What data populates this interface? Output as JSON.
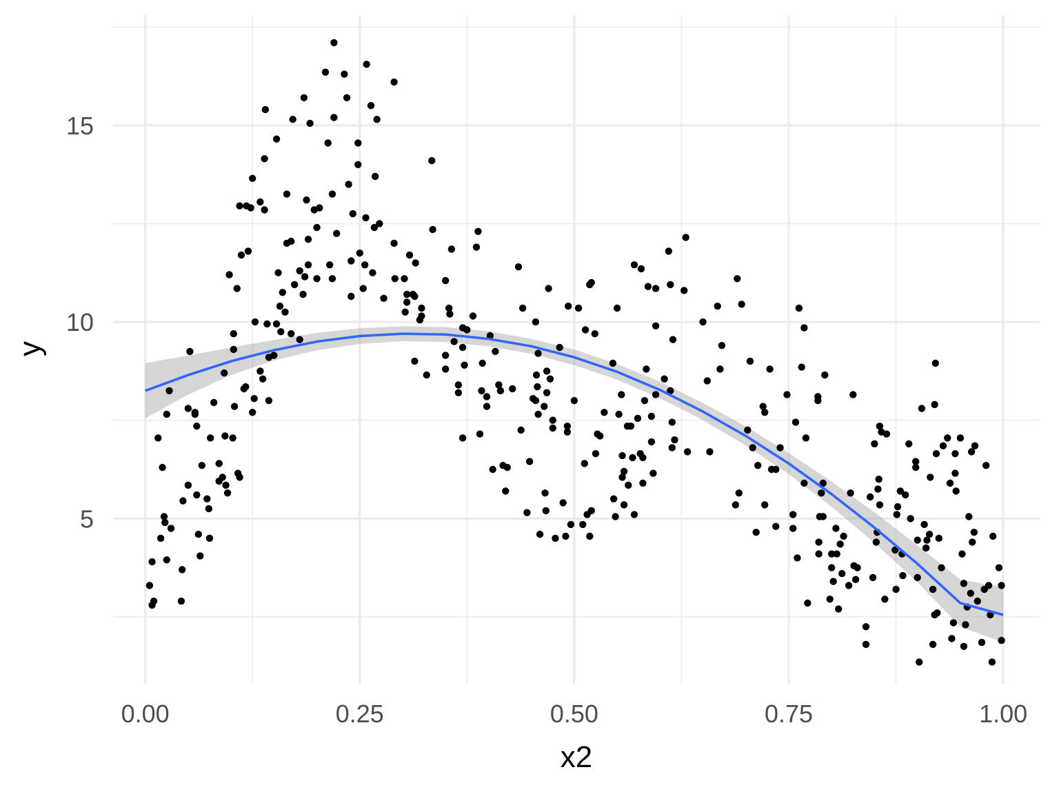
{
  "chart_data": {
    "type": "scatter",
    "xlabel": "x2",
    "ylabel": "y",
    "xlim": [
      -0.0375,
      1.0425
    ],
    "ylim": [
      0.8,
      17.8
    ],
    "x_ticks": [
      0.0,
      0.25,
      0.5,
      0.75,
      1.0
    ],
    "x_tick_labels": [
      "0.00",
      "0.25",
      "0.50",
      "0.75",
      "1.00"
    ],
    "y_ticks": [
      5,
      10,
      15
    ],
    "y_tick_labels": [
      "5",
      "10",
      "15"
    ],
    "grid": true,
    "legend": "none",
    "colors": {
      "points": "#000000",
      "smooth_line": "#3366ff",
      "ribbon": "#999999",
      "grid": "#ebebeb"
    },
    "smooth": {
      "method": "quadratic fit with confidence band",
      "x": [
        0.0,
        0.05,
        0.1,
        0.15,
        0.2,
        0.25,
        0.3,
        0.35,
        0.4,
        0.45,
        0.5,
        0.55,
        0.6,
        0.65,
        0.7,
        0.75,
        0.8,
        0.85,
        0.9,
        0.95,
        1.0
      ],
      "y": [
        8.25,
        8.65,
        9.0,
        9.28,
        9.5,
        9.64,
        9.7,
        9.68,
        9.57,
        9.38,
        9.1,
        8.73,
        8.27,
        7.72,
        7.1,
        6.4,
        5.62,
        4.77,
        3.85,
        2.85,
        2.55
      ],
      "lower": [
        7.55,
        8.15,
        8.65,
        9.02,
        9.28,
        9.44,
        9.51,
        9.49,
        9.38,
        9.19,
        8.9,
        8.53,
        8.06,
        7.5,
        6.86,
        6.13,
        5.3,
        4.38,
        3.38,
        2.25,
        1.85
      ],
      "upper": [
        8.95,
        9.15,
        9.35,
        9.54,
        9.72,
        9.84,
        9.89,
        9.87,
        9.76,
        9.57,
        9.3,
        8.93,
        8.48,
        7.94,
        7.34,
        6.67,
        5.94,
        5.16,
        4.32,
        3.45,
        3.25
      ]
    },
    "points": [
      [
        0.005,
        3.3
      ],
      [
        0.008,
        2.8
      ],
      [
        0.008,
        3.9
      ],
      [
        0.01,
        2.9
      ],
      [
        0.015,
        7.05
      ],
      [
        0.018,
        4.5
      ],
      [
        0.02,
        6.3
      ],
      [
        0.022,
        5.05
      ],
      [
        0.023,
        4.9
      ],
      [
        0.025,
        3.95
      ],
      [
        0.025,
        7.65
      ],
      [
        0.028,
        8.25
      ],
      [
        0.03,
        4.75
      ],
      [
        0.042,
        2.9
      ],
      [
        0.043,
        3.7
      ],
      [
        0.044,
        5.45
      ],
      [
        0.05,
        7.8
      ],
      [
        0.05,
        5.85
      ],
      [
        0.052,
        9.25
      ],
      [
        0.058,
        7.7
      ],
      [
        0.058,
        7.65
      ],
      [
        0.06,
        5.6
      ],
      [
        0.06,
        7.35
      ],
      [
        0.062,
        4.6
      ],
      [
        0.064,
        4.05
      ],
      [
        0.066,
        6.35
      ],
      [
        0.072,
        5.5
      ],
      [
        0.074,
        5.25
      ],
      [
        0.075,
        4.5
      ],
      [
        0.076,
        7.05
      ],
      [
        0.08,
        7.95
      ],
      [
        0.086,
        6.4
      ],
      [
        0.086,
        5.95
      ],
      [
        0.09,
        6.05
      ],
      [
        0.092,
        8.7
      ],
      [
        0.093,
        7.1
      ],
      [
        0.094,
        5.85
      ],
      [
        0.096,
        5.65
      ],
      [
        0.098,
        11.2
      ],
      [
        0.102,
        7.05
      ],
      [
        0.103,
        9.7
      ],
      [
        0.103,
        9.3
      ],
      [
        0.104,
        7.85
      ],
      [
        0.107,
        10.85
      ],
      [
        0.108,
        6.15
      ],
      [
        0.11,
        6.05
      ],
      [
        0.11,
        12.95
      ],
      [
        0.112,
        11.7
      ],
      [
        0.115,
        8.3
      ],
      [
        0.117,
        8.35
      ],
      [
        0.118,
        12.95
      ],
      [
        0.12,
        11.8
      ],
      [
        0.123,
        12.9
      ],
      [
        0.125,
        13.65
      ],
      [
        0.125,
        7.7
      ],
      [
        0.127,
        8.05
      ],
      [
        0.128,
        10.0
      ],
      [
        0.134,
        13.05
      ],
      [
        0.134,
        8.75
      ],
      [
        0.137,
        8.55
      ],
      [
        0.139,
        12.85
      ],
      [
        0.139,
        14.15
      ],
      [
        0.14,
        15.4
      ],
      [
        0.142,
        9.95
      ],
      [
        0.144,
        9.1
      ],
      [
        0.144,
        8.0
      ],
      [
        0.15,
        9.15
      ],
      [
        0.153,
        14.65
      ],
      [
        0.153,
        9.95
      ],
      [
        0.155,
        11.25
      ],
      [
        0.157,
        10.4
      ],
      [
        0.158,
        9.75
      ],
      [
        0.16,
        10.75
      ],
      [
        0.163,
        10.25
      ],
      [
        0.165,
        12.0
      ],
      [
        0.165,
        13.25
      ],
      [
        0.17,
        12.05
      ],
      [
        0.17,
        9.7
      ],
      [
        0.172,
        15.15
      ],
      [
        0.174,
        10.95
      ],
      [
        0.18,
        9.55
      ],
      [
        0.18,
        11.3
      ],
      [
        0.184,
        10.7
      ],
      [
        0.185,
        15.7
      ],
      [
        0.186,
        11.15
      ],
      [
        0.188,
        13.1
      ],
      [
        0.19,
        12.1
      ],
      [
        0.19,
        11.45
      ],
      [
        0.192,
        15.05
      ],
      [
        0.197,
        12.85
      ],
      [
        0.2,
        11.1
      ],
      [
        0.2,
        12.4
      ],
      [
        0.203,
        12.9
      ],
      [
        0.21,
        16.35
      ],
      [
        0.213,
        14.55
      ],
      [
        0.215,
        11.45
      ],
      [
        0.218,
        11.1
      ],
      [
        0.218,
        13.25
      ],
      [
        0.22,
        15.2
      ],
      [
        0.22,
        17.1
      ],
      [
        0.223,
        12.25
      ],
      [
        0.232,
        16.3
      ],
      [
        0.235,
        15.7
      ],
      [
        0.237,
        13.5
      ],
      [
        0.24,
        10.65
      ],
      [
        0.24,
        11.55
      ],
      [
        0.242,
        12.75
      ],
      [
        0.248,
        14.55
      ],
      [
        0.248,
        14.0
      ],
      [
        0.25,
        11.75
      ],
      [
        0.254,
        10.85
      ],
      [
        0.256,
        11.45
      ],
      [
        0.258,
        16.55
      ],
      [
        0.257,
        12.65
      ],
      [
        0.263,
        15.5
      ],
      [
        0.265,
        11.25
      ],
      [
        0.267,
        12.4
      ],
      [
        0.268,
        13.7
      ],
      [
        0.27,
        15.15
      ],
      [
        0.273,
        12.5
      ],
      [
        0.278,
        10.6
      ],
      [
        0.29,
        12.0
      ],
      [
        0.29,
        16.1
      ],
      [
        0.291,
        11.1
      ],
      [
        0.302,
        11.1
      ],
      [
        0.303,
        10.25
      ],
      [
        0.305,
        10.7
      ],
      [
        0.305,
        10.5
      ],
      [
        0.308,
        11.7
      ],
      [
        0.312,
        10.7
      ],
      [
        0.314,
        9.0
      ],
      [
        0.314,
        10.65
      ],
      [
        0.315,
        11.5
      ],
      [
        0.32,
        10.05
      ],
      [
        0.322,
        10.35
      ],
      [
        0.322,
        10.15
      ],
      [
        0.328,
        8.65
      ],
      [
        0.334,
        14.1
      ],
      [
        0.335,
        12.35
      ],
      [
        0.35,
        11.05
      ],
      [
        0.35,
        9.15
      ],
      [
        0.35,
        8.8
      ],
      [
        0.354,
        10.35
      ],
      [
        0.355,
        10.2
      ],
      [
        0.357,
        11.85
      ],
      [
        0.36,
        9.5
      ],
      [
        0.365,
        8.2
      ],
      [
        0.365,
        8.4
      ],
      [
        0.37,
        9.85
      ],
      [
        0.37,
        9.35
      ],
      [
        0.37,
        7.05
      ],
      [
        0.372,
        8.9
      ],
      [
        0.375,
        9.8
      ],
      [
        0.382,
        10.15
      ],
      [
        0.386,
        11.9
      ],
      [
        0.388,
        12.3
      ],
      [
        0.39,
        7.15
      ],
      [
        0.392,
        8.25
      ],
      [
        0.393,
        8.95
      ],
      [
        0.398,
        7.85
      ],
      [
        0.398,
        8.1
      ],
      [
        0.402,
        9.65
      ],
      [
        0.405,
        6.25
      ],
      [
        0.408,
        9.25
      ],
      [
        0.412,
        8.4
      ],
      [
        0.414,
        8.25
      ],
      [
        0.417,
        6.35
      ],
      [
        0.42,
        5.7
      ],
      [
        0.422,
        6.3
      ],
      [
        0.428,
        8.3
      ],
      [
        0.435,
        11.4
      ],
      [
        0.438,
        7.25
      ],
      [
        0.44,
        10.35
      ],
      [
        0.445,
        5.15
      ],
      [
        0.448,
        6.45
      ],
      [
        0.452,
        8.05
      ],
      [
        0.455,
        10.0
      ],
      [
        0.455,
        8.0
      ],
      [
        0.456,
        8.65
      ],
      [
        0.457,
        8.35
      ],
      [
        0.458,
        9.2
      ],
      [
        0.458,
        7.65
      ],
      [
        0.46,
        4.6
      ],
      [
        0.465,
        7.85
      ],
      [
        0.466,
        5.65
      ],
      [
        0.467,
        5.2
      ],
      [
        0.468,
        8.2
      ],
      [
        0.468,
        8.75
      ],
      [
        0.472,
        8.55
      ],
      [
        0.47,
        10.85
      ],
      [
        0.475,
        7.5
      ],
      [
        0.475,
        7.3
      ],
      [
        0.478,
        4.5
      ],
      [
        0.483,
        9.35
      ],
      [
        0.487,
        5.4
      ],
      [
        0.49,
        4.55
      ],
      [
        0.492,
        7.35
      ],
      [
        0.492,
        7.2
      ],
      [
        0.493,
        10.4
      ],
      [
        0.496,
        4.85
      ],
      [
        0.5,
        8.0
      ],
      [
        0.505,
        10.35
      ],
      [
        0.51,
        4.85
      ],
      [
        0.512,
        6.4
      ],
      [
        0.513,
        9.8
      ],
      [
        0.515,
        5.1
      ],
      [
        0.518,
        4.55
      ],
      [
        0.518,
        10.95
      ],
      [
        0.52,
        11.0
      ],
      [
        0.52,
        5.2
      ],
      [
        0.524,
        9.7
      ],
      [
        0.525,
        6.65
      ],
      [
        0.527,
        7.15
      ],
      [
        0.53,
        7.1
      ],
      [
        0.535,
        7.7
      ],
      [
        0.545,
        8.95
      ],
      [
        0.546,
        5.5
      ],
      [
        0.548,
        5.05
      ],
      [
        0.55,
        10.35
      ],
      [
        0.552,
        7.65
      ],
      [
        0.555,
        8.15
      ],
      [
        0.556,
        6.6
      ],
      [
        0.556,
        6.05
      ],
      [
        0.558,
        5.35
      ],
      [
        0.558,
        6.2
      ],
      [
        0.562,
        7.35
      ],
      [
        0.563,
        5.85
      ],
      [
        0.566,
        7.35
      ],
      [
        0.568,
        6.55
      ],
      [
        0.57,
        5.1
      ],
      [
        0.57,
        11.45
      ],
      [
        0.574,
        7.55
      ],
      [
        0.577,
        6.65
      ],
      [
        0.578,
        11.35
      ],
      [
        0.58,
        6.55
      ],
      [
        0.58,
        5.9
      ],
      [
        0.582,
        8.0
      ],
      [
        0.584,
        8.8
      ],
      [
        0.586,
        10.9
      ],
      [
        0.59,
        7.6
      ],
      [
        0.59,
        6.95
      ],
      [
        0.592,
        6.15
      ],
      [
        0.595,
        10.85
      ],
      [
        0.595,
        9.9
      ],
      [
        0.595,
        8.15
      ],
      [
        0.605,
        8.55
      ],
      [
        0.61,
        11.8
      ],
      [
        0.612,
        10.95
      ],
      [
        0.612,
        8.25
      ],
      [
        0.614,
        7.45
      ],
      [
        0.614,
        6.8
      ],
      [
        0.615,
        9.55
      ],
      [
        0.617,
        7.0
      ],
      [
        0.628,
        10.8
      ],
      [
        0.63,
        12.15
      ],
      [
        0.632,
        6.7
      ],
      [
        0.65,
        10.0
      ],
      [
        0.655,
        8.5
      ],
      [
        0.658,
        6.7
      ],
      [
        0.667,
        10.4
      ],
      [
        0.67,
        8.8
      ],
      [
        0.672,
        9.4
      ],
      [
        0.688,
        5.35
      ],
      [
        0.69,
        11.1
      ],
      [
        0.692,
        5.65
      ],
      [
        0.695,
        10.45
      ],
      [
        0.702,
        7.25
      ],
      [
        0.705,
        9.0
      ],
      [
        0.708,
        6.8
      ],
      [
        0.712,
        4.65
      ],
      [
        0.714,
        6.35
      ],
      [
        0.72,
        7.85
      ],
      [
        0.722,
        7.7
      ],
      [
        0.722,
        5.35
      ],
      [
        0.728,
        8.8
      ],
      [
        0.73,
        6.25
      ],
      [
        0.735,
        4.8
      ],
      [
        0.735,
        6.25
      ],
      [
        0.74,
        6.8
      ],
      [
        0.748,
        8.15
      ],
      [
        0.755,
        5.1
      ],
      [
        0.755,
        4.75
      ],
      [
        0.758,
        7.45
      ],
      [
        0.76,
        4.0
      ],
      [
        0.762,
        10.35
      ],
      [
        0.765,
        8.85
      ],
      [
        0.768,
        5.9
      ],
      [
        0.768,
        9.85
      ],
      [
        0.77,
        7.05
      ],
      [
        0.772,
        2.85
      ],
      [
        0.784,
        8.1
      ],
      [
        0.784,
        8.0
      ],
      [
        0.785,
        4.4
      ],
      [
        0.785,
        4.1
      ],
      [
        0.786,
        5.05
      ],
      [
        0.788,
        5.65
      ],
      [
        0.79,
        5.9
      ],
      [
        0.79,
        5.05
      ],
      [
        0.792,
        8.65
      ],
      [
        0.798,
        2.95
      ],
      [
        0.8,
        4.1
      ],
      [
        0.8,
        3.75
      ],
      [
        0.802,
        3.4
      ],
      [
        0.805,
        4.75
      ],
      [
        0.806,
        4.1
      ],
      [
        0.808,
        2.7
      ],
      [
        0.81,
        4.35
      ],
      [
        0.812,
        3.6
      ],
      [
        0.814,
        4.55
      ],
      [
        0.82,
        3.3
      ],
      [
        0.822,
        5.65
      ],
      [
        0.825,
        8.15
      ],
      [
        0.826,
        3.8
      ],
      [
        0.828,
        3.45
      ],
      [
        0.83,
        3.75
      ],
      [
        0.84,
        2.25
      ],
      [
        0.84,
        1.8
      ],
      [
        0.845,
        5.55
      ],
      [
        0.848,
        3.5
      ],
      [
        0.85,
        6.9
      ],
      [
        0.852,
        4.4
      ],
      [
        0.853,
        4.65
      ],
      [
        0.854,
        5.75
      ],
      [
        0.855,
        6.0
      ],
      [
        0.856,
        5.35
      ],
      [
        0.856,
        7.35
      ],
      [
        0.858,
        7.2
      ],
      [
        0.862,
        2.95
      ],
      [
        0.864,
        7.15
      ],
      [
        0.874,
        4.2
      ],
      [
        0.875,
        3.2
      ],
      [
        0.876,
        5.1
      ],
      [
        0.877,
        5.3
      ],
      [
        0.88,
        5.7
      ],
      [
        0.882,
        4.1
      ],
      [
        0.883,
        3.55
      ],
      [
        0.886,
        5.6
      ],
      [
        0.89,
        6.9
      ],
      [
        0.892,
        5.0
      ],
      [
        0.898,
        6.45
      ],
      [
        0.898,
        6.3
      ],
      [
        0.9,
        4.45
      ],
      [
        0.9,
        3.5
      ],
      [
        0.902,
        1.35
      ],
      [
        0.905,
        7.8
      ],
      [
        0.908,
        4.85
      ],
      [
        0.91,
        4.25
      ],
      [
        0.911,
        4.45
      ],
      [
        0.914,
        4.6
      ],
      [
        0.915,
        6.05
      ],
      [
        0.918,
        3.2
      ],
      [
        0.918,
        1.8
      ],
      [
        0.92,
        2.55
      ],
      [
        0.92,
        7.9
      ],
      [
        0.921,
        8.95
      ],
      [
        0.922,
        6.65
      ],
      [
        0.923,
        2.6
      ],
      [
        0.925,
        4.5
      ],
      [
        0.928,
        3.75
      ],
      [
        0.93,
        6.85
      ],
      [
        0.935,
        7.05
      ],
      [
        0.938,
        5.9
      ],
      [
        0.94,
        1.95
      ],
      [
        0.942,
        2.35
      ],
      [
        0.944,
        6.15
      ],
      [
        0.944,
        6.65
      ],
      [
        0.945,
        5.7
      ],
      [
        0.95,
        7.05
      ],
      [
        0.952,
        4.1
      ],
      [
        0.954,
        3.35
      ],
      [
        0.954,
        1.75
      ],
      [
        0.956,
        2.3
      ],
      [
        0.958,
        2.75
      ],
      [
        0.96,
        5.05
      ],
      [
        0.962,
        3.1
      ],
      [
        0.963,
        6.7
      ],
      [
        0.964,
        4.4
      ],
      [
        0.966,
        4.65
      ],
      [
        0.967,
        6.85
      ],
      [
        0.97,
        2.9
      ],
      [
        0.975,
        1.85
      ],
      [
        0.978,
        3.2
      ],
      [
        0.98,
        6.35
      ],
      [
        0.983,
        3.3
      ],
      [
        0.985,
        2.55
      ],
      [
        0.987,
        1.35
      ],
      [
        0.988,
        4.55
      ],
      [
        0.995,
        3.75
      ],
      [
        0.998,
        3.3
      ],
      [
        0.998,
        1.9
      ]
    ]
  }
}
